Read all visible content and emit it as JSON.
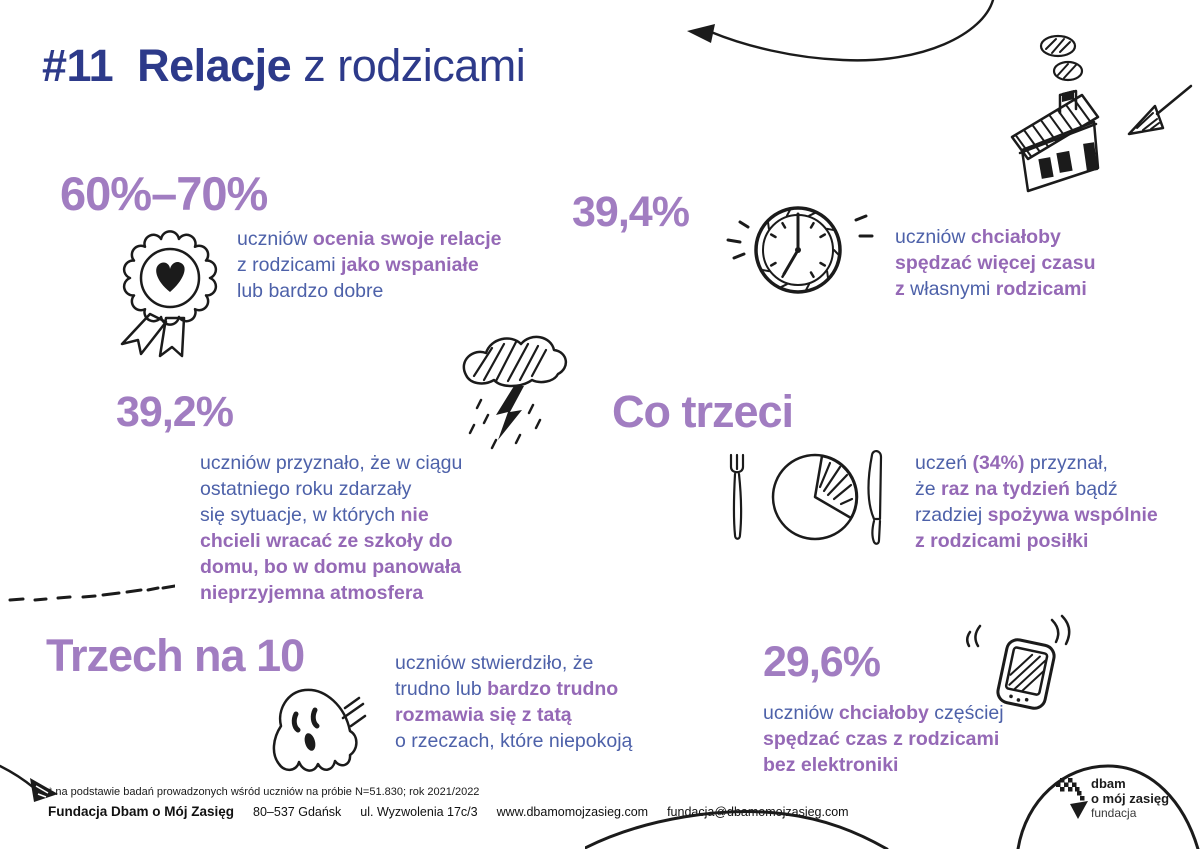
{
  "title": {
    "segments": [
      {
        "t": "#11  Relacje",
        "b": true
      },
      {
        "t": " z rodzicami"
      }
    ]
  },
  "colors": {
    "navy_title": "#2d3a8a",
    "purple_headline": "#a17dc1",
    "purple_bold_text": "#9569b6",
    "blue_text": "#4d61a9",
    "ink": "#1b1b1b",
    "background": "#ffffff"
  },
  "stats": [
    {
      "number": "60%–70%",
      "icon": "award-rosette-icon",
      "segments": [
        {
          "t": "uczniów "
        },
        {
          "t": "ocenia swoje relacje",
          "b": true
        },
        {
          "br": true
        },
        {
          "t": "z rodzicami "
        },
        {
          "t": "jako wspaniałe",
          "b": true
        },
        {
          "br": true
        },
        {
          "t": "lub bardzo dobre"
        }
      ]
    },
    {
      "number": "39,4%",
      "icon": "clock-icon",
      "segments": [
        {
          "t": "uczniów "
        },
        {
          "t": "chciałoby",
          "b": true
        },
        {
          "br": true
        },
        {
          "t": "spędzać więcej czasu",
          "b": true
        },
        {
          "br": true
        },
        {
          "t": "z ",
          "b": true
        },
        {
          "t": "własnymi "
        },
        {
          "t": "rodzicami",
          "b": true
        }
      ]
    },
    {
      "number": "39,2%",
      "icon": "storm-cloud-icon",
      "segments": [
        {
          "t": "uczniów przyznało, że w ciągu"
        },
        {
          "br": true
        },
        {
          "t": "ostatniego roku zdarzały"
        },
        {
          "br": true
        },
        {
          "t": "się sytuacje, w których "
        },
        {
          "t": "nie",
          "b": true
        },
        {
          "br": true
        },
        {
          "t": "chcieli wracać ze szkoły do",
          "b": true
        },
        {
          "br": true
        },
        {
          "t": "domu, bo w domu panowała",
          "b": true
        },
        {
          "br": true
        },
        {
          "t": "nieprzyjemna atmosfera",
          "b": true
        }
      ]
    },
    {
      "number": "Co trzeci",
      "icon": "meal-plate-icon",
      "segments": [
        {
          "t": "uczeń "
        },
        {
          "t": "(34%)",
          "b": true
        },
        {
          "t": " przyznał,"
        },
        {
          "br": true
        },
        {
          "t": "że "
        },
        {
          "t": "raz na tydzień",
          "b": true
        },
        {
          "t": " bądź"
        },
        {
          "br": true
        },
        {
          "t": "rzadziej "
        },
        {
          "t": "spożywa wspólnie",
          "b": true
        },
        {
          "br": true
        },
        {
          "t": "z rodzicami posiłki",
          "b": true
        }
      ]
    },
    {
      "number": "Trzech na 10",
      "icon": "ghost-icon",
      "segments": [
        {
          "t": "uczniów stwierdziło, że"
        },
        {
          "br": true
        },
        {
          "t": "trudno lub "
        },
        {
          "t": "bardzo trudno",
          "b": true
        },
        {
          "br": true
        },
        {
          "t": "rozmawia się z tatą",
          "b": true
        },
        {
          "br": true
        },
        {
          "t": "o rzeczach, które niepokoją"
        }
      ]
    },
    {
      "number": "29,6%",
      "icon": "smartphone-icon",
      "segments": [
        {
          "t": "uczniów "
        },
        {
          "t": "chciałoby",
          "b": true
        },
        {
          "t": " częściej"
        },
        {
          "br": true
        },
        {
          "t": "spędzać czas z rodzicami",
          "b": true
        },
        {
          "br": true
        },
        {
          "t": "bez elektroniki",
          "b": true
        }
      ]
    }
  ],
  "footer": {
    "note": "* na podstawie badań prowadzonych wśród uczniów na próbie N=51.830; rok 2021/2022",
    "org_name": "Fundacja Dbam o Mój Zasięg",
    "items": [
      "80–537 Gdańsk",
      "ul. Wyzwolenia 17c/3",
      "www.dbamomojzasieg.com",
      "fundacja@dbamomojzasieg.com"
    ]
  },
  "logo": {
    "line1": "dbam",
    "line2": "o mój zasięg",
    "line3": "fundacja"
  }
}
